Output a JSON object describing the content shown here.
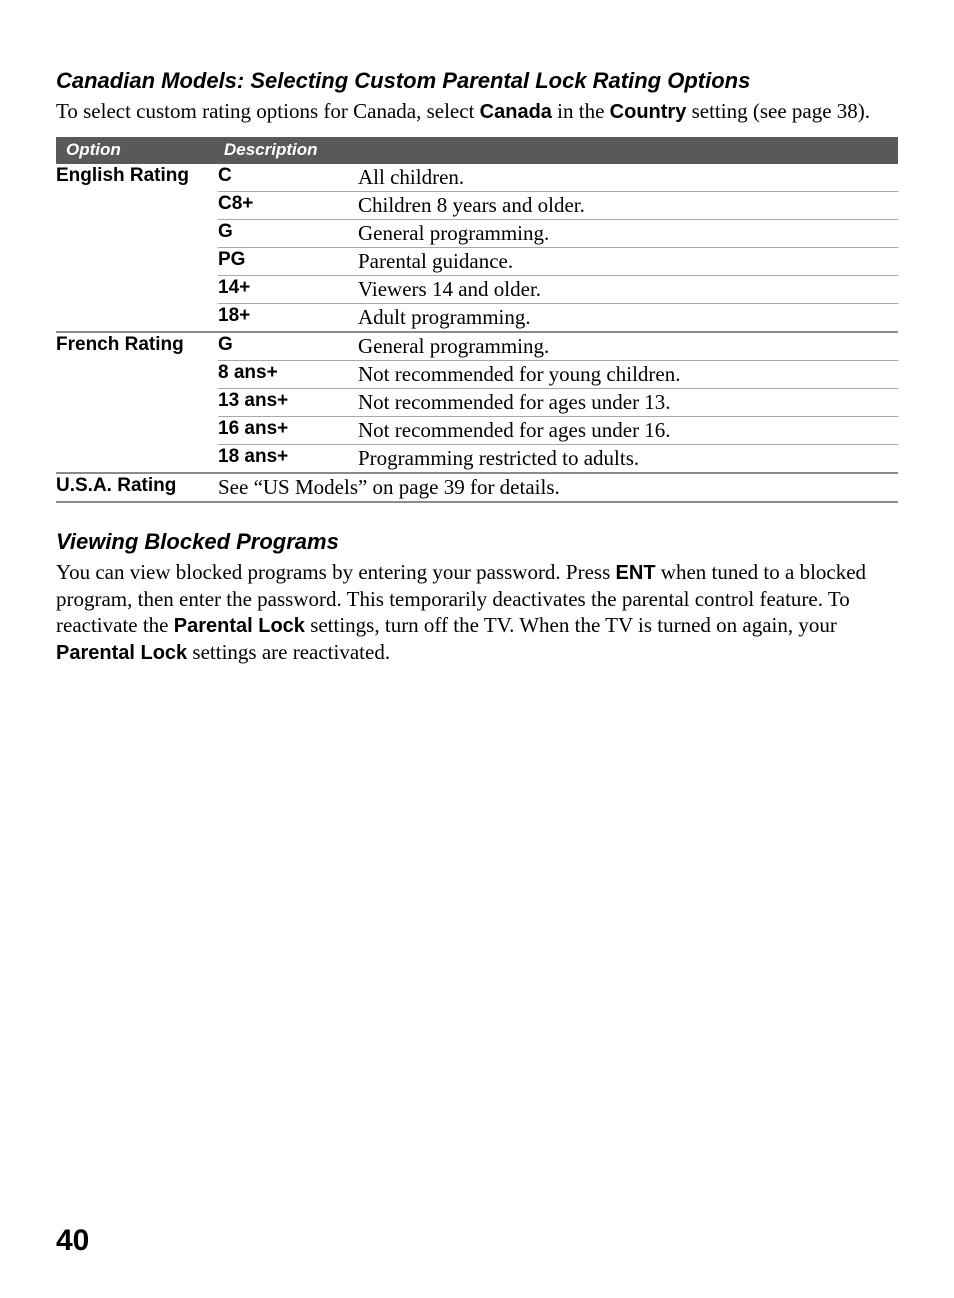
{
  "section1": {
    "heading": "Canadian Models: Selecting Custom Parental Lock Rating Options",
    "intro_pre": "To select custom rating options for Canada, select ",
    "intro_b1": "Canada",
    "intro_mid": " in the ",
    "intro_b2": "Country",
    "intro_post": " setting (see page 38)."
  },
  "table": {
    "header": {
      "option": "Option",
      "description": "Description"
    },
    "groups": [
      {
        "option": "English Rating",
        "rows": [
          {
            "code": "C",
            "desc": "All children."
          },
          {
            "code": "C8+",
            "desc": "Children 8 years and older."
          },
          {
            "code": "G",
            "desc": "General programming."
          },
          {
            "code": "PG",
            "desc": "Parental guidance."
          },
          {
            "code": "14+",
            "desc": "Viewers 14 and older."
          },
          {
            "code": "18+",
            "desc": "Adult programming."
          }
        ]
      },
      {
        "option": "French Rating",
        "rows": [
          {
            "code": "G",
            "desc": "General programming."
          },
          {
            "code": "8 ans+",
            "desc": "Not recommended for young children."
          },
          {
            "code": "13 ans+",
            "desc": "Not recommended for ages under 13."
          },
          {
            "code": "16 ans+",
            "desc": "Not recommended for ages under 16."
          },
          {
            "code": "18 ans+",
            "desc": "Programming restricted to adults."
          }
        ]
      },
      {
        "option": "U.S.A. Rating",
        "span_desc": "See “US Models” on page 39 for details."
      }
    ]
  },
  "section2": {
    "heading": "Viewing Blocked Programs",
    "p_pre": "You can view blocked programs by entering your password. Press ",
    "p_b1": "ENT",
    "p_mid1": " when tuned to a blocked program, then enter the password. This temporarily deactivates the parental control feature. To reactivate the ",
    "p_b2": "Parental Lock",
    "p_mid2": " settings, turn off the TV. When the TV is turned on again, your ",
    "p_b3": "Parental Lock",
    "p_post": " settings are reactivated."
  },
  "page_number": "40",
  "colors": {
    "header_bg": "#59595c",
    "header_fg": "#ffffff",
    "rule": "#a9a9ab",
    "rule_strong": "#8b8b8e",
    "text": "#000000",
    "background": "#ffffff"
  }
}
